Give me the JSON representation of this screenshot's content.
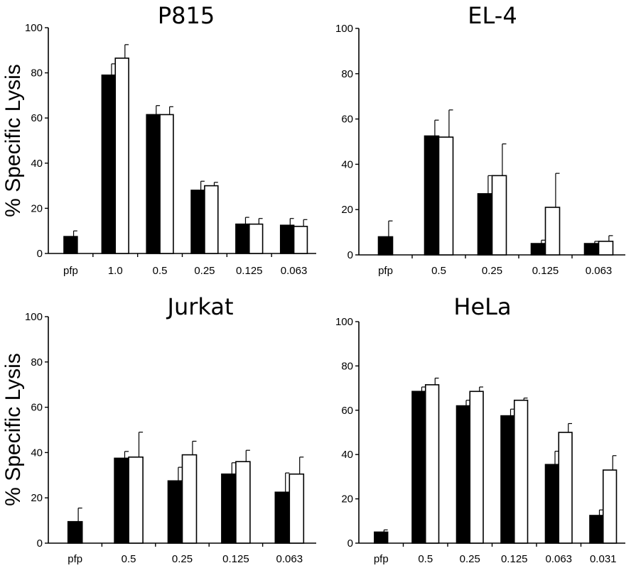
{
  "colors": {
    "filled_bar": "#000000",
    "open_bar": "#ffffff",
    "axis": "#000000"
  },
  "chart_data": [
    {
      "type": "bar",
      "title": "P815",
      "ylabel": "% Specific  Lysis",
      "ylim": [
        0,
        100
      ],
      "yticks": [
        0,
        20,
        40,
        60,
        80,
        100
      ],
      "categories": [
        "pfp",
        "1.0",
        "0.5",
        "0.25",
        "0.125",
        "0.063"
      ],
      "series": [
        {
          "fill": "#000000",
          "values": [
            7.5,
            79,
            61.5,
            28,
            13,
            12.5
          ],
          "errors": [
            2.5,
            5,
            4,
            4,
            3,
            3
          ]
        },
        {
          "fill": "#ffffff",
          "values": [
            null,
            86.5,
            61.5,
            30,
            13,
            12
          ],
          "errors": [
            null,
            6,
            3.5,
            1.5,
            2.5,
            3
          ]
        }
      ]
    },
    {
      "type": "bar",
      "title": "EL-4",
      "ylabel": "",
      "ylim": [
        0,
        100
      ],
      "yticks": [
        0,
        20,
        40,
        60,
        80,
        100
      ],
      "categories": [
        "pfp",
        "0.5",
        "0.25",
        "0.125",
        "0.063"
      ],
      "series": [
        {
          "fill": "#000000",
          "values": [
            8,
            52.5,
            27,
            5,
            5
          ],
          "errors": [
            7,
            7,
            8,
            1.5,
            1
          ]
        },
        {
          "fill": "#ffffff",
          "values": [
            null,
            52,
            35,
            21,
            6
          ],
          "errors": [
            null,
            12,
            14,
            15,
            2.5
          ]
        }
      ]
    },
    {
      "type": "bar",
      "title": "Jurkat",
      "ylabel": "% Specific  Lysis",
      "ylim": [
        0,
        100
      ],
      "yticks": [
        0,
        20,
        40,
        60,
        80,
        100
      ],
      "categories": [
        "pfp",
        "0.5",
        "0.25",
        "0.125",
        "0.063"
      ],
      "series": [
        {
          "fill": "#000000",
          "values": [
            9.5,
            37.5,
            27.5,
            30.5,
            22.5
          ],
          "errors": [
            6,
            3,
            6,
            5,
            8.5
          ]
        },
        {
          "fill": "#ffffff",
          "values": [
            null,
            38,
            39,
            36,
            30.5
          ],
          "errors": [
            null,
            11,
            6,
            5,
            7.5
          ]
        }
      ]
    },
    {
      "type": "bar",
      "title": "HeLa",
      "ylabel": "",
      "ylim": [
        0,
        100
      ],
      "yticks": [
        0,
        20,
        40,
        60,
        80,
        100
      ],
      "categories": [
        "pfp",
        "0.5",
        "0.25",
        "0.125",
        "0.063",
        "0.031"
      ],
      "series": [
        {
          "fill": "#000000",
          "values": [
            5,
            68.5,
            62,
            57.5,
            35.5,
            12.5
          ],
          "errors": [
            1,
            2,
            2.5,
            3,
            6,
            2.5
          ]
        },
        {
          "fill": "#ffffff",
          "values": [
            null,
            71.5,
            68.5,
            64.5,
            50,
            33
          ],
          "errors": [
            null,
            3,
            2,
            1,
            4,
            6.5
          ]
        }
      ]
    }
  ]
}
